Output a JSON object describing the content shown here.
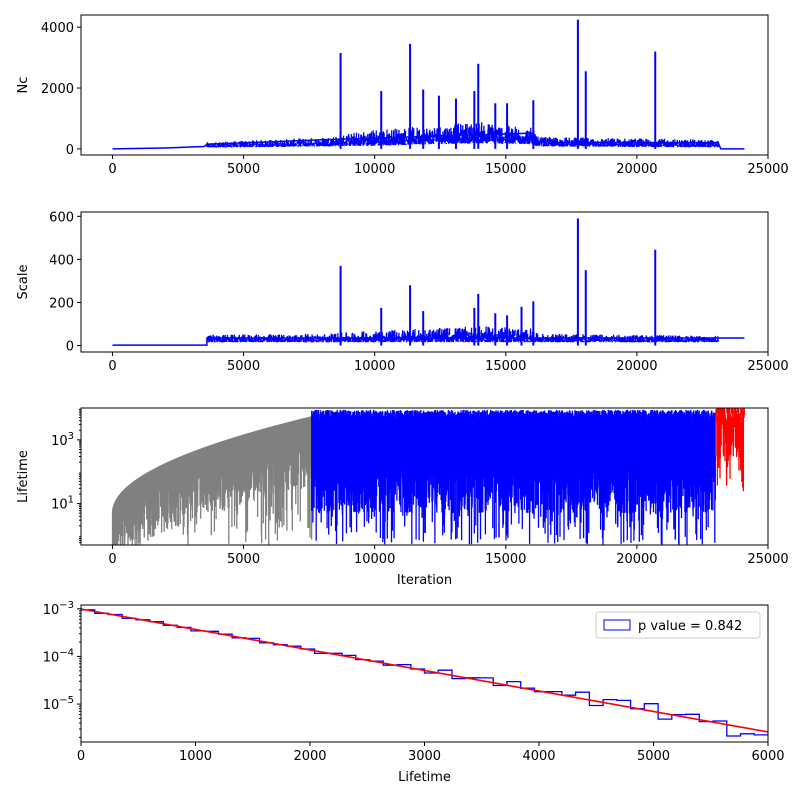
{
  "chart_data": [
    {
      "type": "line",
      "ylabel": "Nc",
      "xlabel": "",
      "xlim": [
        -1200,
        25000
      ],
      "ylim": [
        -200,
        4400
      ],
      "x_ticks": [
        0,
        5000,
        10000,
        15000,
        20000,
        25000
      ],
      "x_tick_labels": [
        "0",
        "5000",
        "10000",
        "15000",
        "20000",
        "25000"
      ],
      "y_ticks": [
        0,
        2000,
        4000
      ],
      "y_tick_labels": [
        "0",
        "2000",
        "4000"
      ],
      "grid": false,
      "series": [
        {
          "color": "#0000ff",
          "x": [
            0,
            2000,
            3500,
            3600,
            8000,
            16000,
            16200,
            23100,
            23200,
            24100
          ],
          "y": [
            0,
            30,
            80,
            150,
            300,
            520,
            220,
            200,
            0,
            0
          ],
          "band_x": [
            3600,
            8000,
            10000,
            12000,
            14000,
            16000,
            16200,
            20000,
            23100
          ],
          "band_low": [
            40,
            80,
            100,
            150,
            180,
            150,
            80,
            60,
            50
          ],
          "band_high": [
            220,
            380,
            650,
            750,
            900,
            700,
            400,
            350,
            300
          ],
          "spikes": [
            [
              8700,
              3150
            ],
            [
              10250,
              1900
            ],
            [
              11350,
              3450
            ],
            [
              11850,
              1950
            ],
            [
              12450,
              1750
            ],
            [
              13100,
              1650
            ],
            [
              13800,
              1900
            ],
            [
              13950,
              2800
            ],
            [
              14600,
              1500
            ],
            [
              15050,
              1500
            ],
            [
              16050,
              1600
            ],
            [
              17750,
              4250
            ],
            [
              18050,
              2550
            ],
            [
              20700,
              3200
            ]
          ]
        }
      ]
    },
    {
      "type": "line",
      "ylabel": "Scale",
      "xlabel": "",
      "xlim": [
        -1200,
        25000
      ],
      "ylim": [
        -30,
        620
      ],
      "x_ticks": [
        0,
        5000,
        10000,
        15000,
        20000,
        25000
      ],
      "x_tick_labels": [
        "0",
        "5000",
        "10000",
        "15000",
        "20000",
        "25000"
      ],
      "y_ticks": [
        0,
        200,
        400,
        600
      ],
      "y_tick_labels": [
        "0",
        "200",
        "400",
        "600"
      ],
      "grid": false,
      "series": [
        {
          "color": "#0000ff",
          "x": [
            0,
            3600,
            3600,
            16200,
            23100,
            24100
          ],
          "y": [
            2,
            2,
            35,
            35,
            35,
            35
          ],
          "band_x": [
            3600,
            8000,
            10000,
            12000,
            14000,
            16000,
            16200,
            20000,
            23100
          ],
          "band_low": [
            15,
            15,
            15,
            15,
            15,
            15,
            15,
            15,
            15
          ],
          "band_high": [
            50,
            55,
            70,
            80,
            90,
            80,
            55,
            50,
            45
          ],
          "spikes": [
            [
              8700,
              370
            ],
            [
              10250,
              175
            ],
            [
              11350,
              280
            ],
            [
              11850,
              160
            ],
            [
              13800,
              175
            ],
            [
              13950,
              240
            ],
            [
              14600,
              150
            ],
            [
              15050,
              140
            ],
            [
              15600,
              180
            ],
            [
              16050,
              205
            ],
            [
              17750,
              590
            ],
            [
              18050,
              350
            ],
            [
              20700,
              445
            ]
          ]
        }
      ]
    },
    {
      "type": "line",
      "ylabel": "Lifetime",
      "xlabel": "Iteration",
      "xlim": [
        -1200,
        25000
      ],
      "ylim": [
        0.5,
        10000
      ],
      "yscale": "log",
      "x_ticks": [
        0,
        5000,
        10000,
        15000,
        20000,
        25000
      ],
      "x_tick_labels": [
        "0",
        "5000",
        "10000",
        "15000",
        "20000",
        "25000"
      ],
      "y_ticks": [
        10,
        1000
      ],
      "y_tick_labels": [
        "10^1",
        "10^3"
      ],
      "grid": false,
      "series": [
        {
          "color": "#808080",
          "x_range": [
            0,
            7600
          ],
          "envelope_top": "increasing",
          "top_start": 5,
          "top_end": 5500
        },
        {
          "color": "#0000ff",
          "x_range": [
            7600,
            23000
          ],
          "top": 7000,
          "bottom": 0.5
        },
        {
          "color": "#ff0000",
          "x_range": [
            23000,
            24100
          ],
          "top": 6000,
          "bottom": 20
        }
      ]
    },
    {
      "type": "line",
      "ylabel": "",
      "xlabel": "Lifetime",
      "xlim": [
        0,
        6000
      ],
      "ylim": [
        1.6e-06,
        0.0012
      ],
      "yscale": "log",
      "x_ticks": [
        0,
        1000,
        2000,
        3000,
        4000,
        5000,
        6000
      ],
      "x_tick_labels": [
        "0",
        "1000",
        "2000",
        "3000",
        "4000",
        "5000",
        "6000"
      ],
      "y_ticks": [
        1e-05,
        0.0001,
        0.001
      ],
      "y_tick_labels": [
        "10^-5",
        "10^-4",
        "10^-3"
      ],
      "grid": false,
      "legend": {
        "position": "upper-right",
        "label": "p value = 0.842"
      },
      "series": [
        {
          "name": "p value = 0.842",
          "kind": "step-histogram",
          "color": "#0000ff",
          "bin_width": 120,
          "fit_rate": 0.000987,
          "fit_intercept": 0.00099,
          "noise_factors": [
            1.02,
            0.97,
            1.03,
            0.96,
            1.01,
            1.04,
            0.98,
            1.0,
            0.95,
            1.05,
            1.03,
            0.97,
            1.06,
            0.96,
            0.99,
            1.04,
            1.02,
            0.93,
            1.05,
            1.07,
            0.98,
            1.03,
            0.95,
            1.1,
            1.0,
            0.93,
            1.2,
            0.9,
            1.05,
            1.18,
            0.92,
            1.25,
            1.02,
            0.97,
            1.1,
            1.04,
            1.35,
            0.8,
            1.2,
            1.3,
            0.98,
            1.4,
            0.75,
            1.05,
            1.2,
            0.95,
            1.1,
            0.6,
            0.75,
            0.8
          ]
        },
        {
          "name": "",
          "kind": "fit",
          "color": "#ff0000",
          "x": [
            0,
            6000
          ],
          "y": [
            0.00099,
            2.6e-06
          ]
        }
      ]
    }
  ]
}
